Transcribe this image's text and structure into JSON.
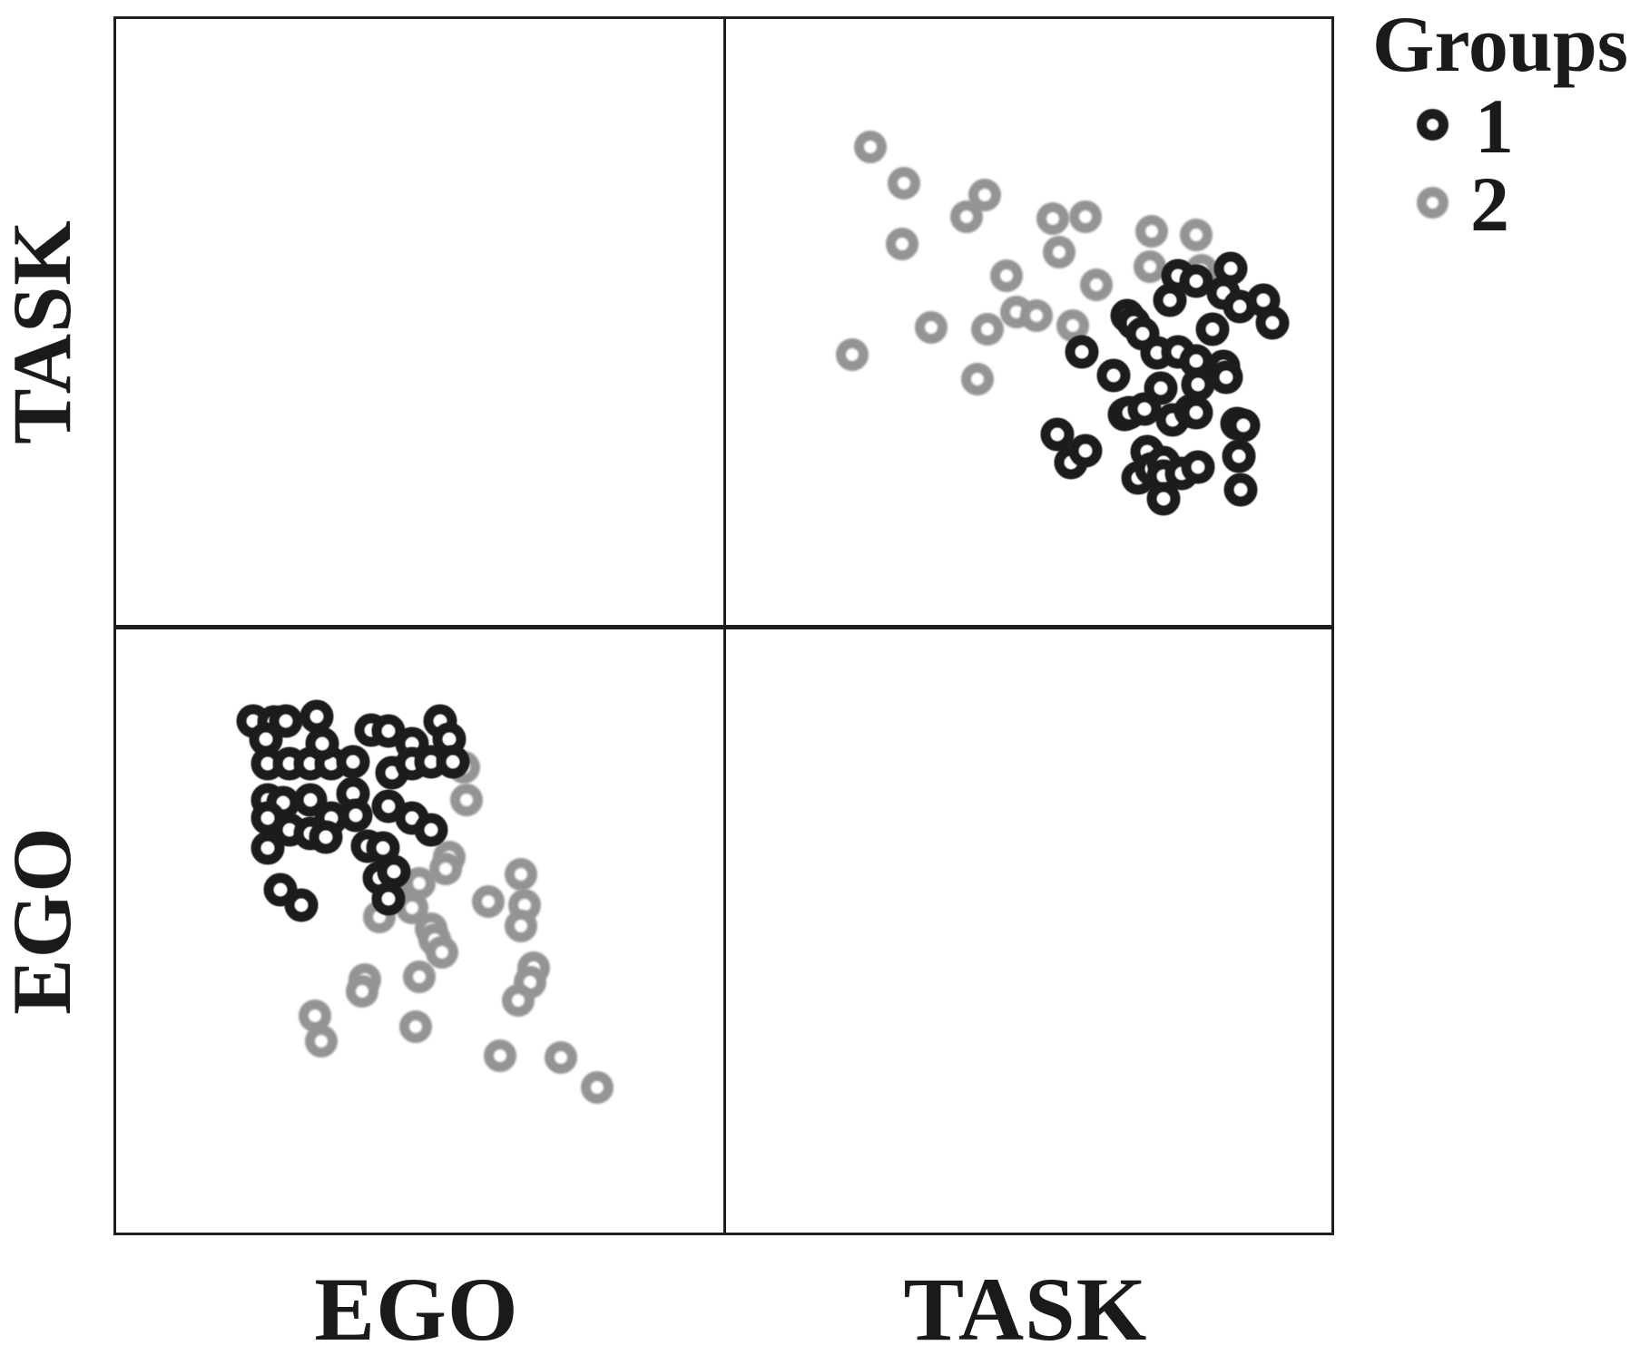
{
  "legend": {
    "title": "Groups",
    "items": [
      {
        "label": "1",
        "marker_shape": "open-circle",
        "marker_color": "#1c1c1c"
      },
      {
        "label": "2",
        "marker_shape": "open-circle",
        "marker_color": "#949494"
      }
    ]
  },
  "axes": {
    "left_top_label": "TASK",
    "left_bottom_label": "EGO",
    "bottom_left_label": "EGO",
    "bottom_right_label": "TASK"
  },
  "colors": {
    "background": "#ffffff",
    "ink": "#1e1e1e",
    "group1": "#1c1c1c",
    "group2": "#949494"
  },
  "chart_data": {
    "type": "scatter",
    "layout": "2x2 scatterplot matrix",
    "row_labels": [
      "TASK",
      "EGO"
    ],
    "col_labels": [
      "EGO",
      "TASK"
    ],
    "legend_title": "Groups",
    "grid": false,
    "axis_ticks": "none visible",
    "coords_note": "points given as [fx, fy] fractions of each panel, x rightward, y downward",
    "panels": [
      {
        "position": "top-left",
        "row": "TASK",
        "col": "EGO",
        "series": []
      },
      {
        "position": "top-right",
        "row": "TASK",
        "col": "TASK",
        "series": [
          {
            "group": "2",
            "points": [
              [
                0.239,
                0.211
              ],
              [
                0.294,
                0.271
              ],
              [
                0.398,
                0.326
              ],
              [
                0.428,
                0.29
              ],
              [
                0.291,
                0.372
              ],
              [
                0.539,
                0.33
              ],
              [
                0.594,
                0.327
              ],
              [
                0.55,
                0.385
              ],
              [
                0.703,
                0.35
              ],
              [
                0.777,
                0.356
              ],
              [
                0.7,
                0.409
              ],
              [
                0.785,
                0.415
              ],
              [
                0.464,
                0.424
              ],
              [
                0.339,
                0.509
              ],
              [
                0.48,
                0.484
              ],
              [
                0.513,
                0.49
              ],
              [
                0.432,
                0.512
              ],
              [
                0.572,
                0.506
              ],
              [
                0.611,
                0.439
              ],
              [
                0.208,
                0.554
              ],
              [
                0.415,
                0.594
              ]
            ]
          },
          {
            "group": "1",
            "points": [
              [
                0.588,
                0.549
              ],
              [
                0.547,
                0.686
              ],
              [
                0.569,
                0.732
              ],
              [
                0.594,
                0.713
              ],
              [
                0.64,
                0.589
              ],
              [
                0.658,
                0.653
              ],
              [
                0.663,
                0.49
              ],
              [
                0.666,
                0.65
              ],
              [
                0.673,
                0.501
              ],
              [
                0.681,
                0.757
              ],
              [
                0.688,
                0.519
              ],
              [
                0.691,
                0.643
              ],
              [
                0.695,
                0.714
              ],
              [
                0.703,
                0.743
              ],
              [
                0.712,
                0.551
              ],
              [
                0.718,
                0.609
              ],
              [
                0.722,
                0.732
              ],
              [
                0.722,
                0.754
              ],
              [
                0.722,
                0.792
              ],
              [
                0.733,
                0.464
              ],
              [
                0.737,
                0.662
              ],
              [
                0.747,
                0.423
              ],
              [
                0.747,
                0.549
              ],
              [
                0.752,
                0.75
              ],
              [
                0.767,
                0.647
              ],
              [
                0.777,
                0.432
              ],
              [
                0.777,
                0.564
              ],
              [
                0.777,
                0.65
              ],
              [
                0.78,
                0.604
              ],
              [
                0.78,
                0.74
              ],
              [
                0.804,
                0.512
              ],
              [
                0.822,
                0.452
              ],
              [
                0.822,
                0.573
              ],
              [
                0.826,
                0.591
              ],
              [
                0.834,
                0.412
              ],
              [
                0.844,
                0.668
              ],
              [
                0.847,
                0.722
              ],
              [
                0.848,
                0.475
              ],
              [
                0.85,
                0.777
              ],
              [
                0.854,
                0.67
              ],
              [
                0.888,
                0.464
              ],
              [
                0.903,
                0.501
              ]
            ]
          }
        ]
      },
      {
        "position": "bottom-left",
        "row": "EGO",
        "col": "EGO",
        "series": [
          {
            "group": "2",
            "points": [
              [
                0.573,
                0.228
              ],
              [
                0.577,
                0.283
              ],
              [
                0.548,
                0.377
              ],
              [
                0.458,
                0.436
              ],
              [
                0.488,
                0.461
              ],
              [
                0.434,
                0.476
              ],
              [
                0.518,
                0.496
              ],
              [
                0.499,
                0.421
              ],
              [
                0.543,
                0.397
              ],
              [
                0.613,
                0.451
              ],
              [
                0.667,
                0.406
              ],
              [
                0.673,
                0.457
              ],
              [
                0.667,
                0.491
              ],
              [
                0.524,
                0.515
              ],
              [
                0.536,
                0.536
              ],
              [
                0.499,
                0.576
              ],
              [
                0.409,
                0.58
              ],
              [
                0.405,
                0.6
              ],
              [
                0.494,
                0.659
              ],
              [
                0.688,
                0.561
              ],
              [
                0.682,
                0.585
              ],
              [
                0.662,
                0.615
              ],
              [
                0.632,
                0.707
              ],
              [
                0.732,
                0.71
              ],
              [
                0.792,
                0.759
              ],
              [
                0.327,
                0.64
              ],
              [
                0.338,
                0.682
              ]
            ]
          },
          {
            "group": "1",
            "points": [
              [
                0.226,
                0.152
              ],
              [
                0.26,
                0.153
              ],
              [
                0.28,
                0.152
              ],
              [
                0.33,
                0.144
              ],
              [
                0.246,
                0.182
              ],
              [
                0.42,
                0.167
              ],
              [
                0.449,
                0.168
              ],
              [
                0.487,
                0.19
              ],
              [
                0.533,
                0.152
              ],
              [
                0.548,
                0.182
              ],
              [
                0.25,
                0.223
              ],
              [
                0.286,
                0.223
              ],
              [
                0.32,
                0.223
              ],
              [
                0.354,
                0.223
              ],
              [
                0.39,
                0.22
              ],
              [
                0.339,
                0.189
              ],
              [
                0.454,
                0.238
              ],
              [
                0.488,
                0.223
              ],
              [
                0.518,
                0.219
              ],
              [
                0.554,
                0.219
              ],
              [
                0.25,
                0.283
              ],
              [
                0.275,
                0.287
              ],
              [
                0.32,
                0.283
              ],
              [
                0.39,
                0.272
              ],
              [
                0.394,
                0.308
              ],
              [
                0.449,
                0.293
              ],
              [
                0.488,
                0.313
              ],
              [
                0.518,
                0.332
              ],
              [
                0.25,
                0.313
              ],
              [
                0.286,
                0.332
              ],
              [
                0.32,
                0.338
              ],
              [
                0.354,
                0.313
              ],
              [
                0.25,
                0.362
              ],
              [
                0.345,
                0.345
              ],
              [
                0.414,
                0.36
              ],
              [
                0.439,
                0.362
              ],
              [
                0.271,
                0.432
              ],
              [
                0.305,
                0.457
              ],
              [
                0.434,
                0.412
              ],
              [
                0.458,
                0.402
              ],
              [
                0.449,
                0.446
              ]
            ]
          }
        ]
      },
      {
        "position": "bottom-right",
        "row": "EGO",
        "col": "TASK",
        "series": []
      }
    ]
  }
}
